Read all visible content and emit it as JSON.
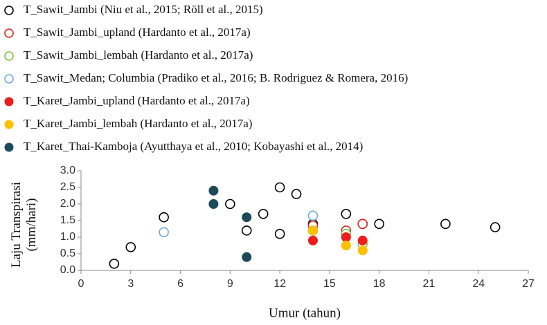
{
  "chart_data": {
    "type": "scatter",
    "x_label": "Umur (tahun)",
    "y_label": "Laju Transpirasi (mm/hari)",
    "xlim": [
      0,
      27
    ],
    "xticks": [
      0,
      3,
      6,
      9,
      12,
      15,
      18,
      21,
      24,
      27
    ],
    "ylim": [
      0,
      3
    ],
    "yticks": [
      {
        "value": 0,
        "label": "0.0"
      },
      {
        "value": 0.5,
        "label": "0.5"
      },
      {
        "value": 1,
        "label": "1.0"
      },
      {
        "value": 1.5,
        "label": "1.5"
      },
      {
        "value": 2,
        "label": "2.0"
      },
      {
        "value": 2.5,
        "label": "2.5"
      },
      {
        "value": 3,
        "label": "3.0"
      }
    ],
    "grid": false,
    "series": [
      {
        "name": "T_Sawit_Jambi (Niu et al., 2015; Röll et al., 2015)",
        "color": "#000000",
        "filled": false,
        "x": [
          2,
          3,
          5,
          9,
          10,
          11,
          12,
          12,
          13,
          14,
          16,
          17,
          18,
          22,
          25
        ],
        "values": [
          0.2,
          0.7,
          1.6,
          2.0,
          1.2,
          1.7,
          2.5,
          1.1,
          2.3,
          1.4,
          1.7,
          1.4,
          1.4,
          1.4,
          1.3
        ]
      },
      {
        "name": "T_Sawit_Jambi_upland (Hardanto et al., 2017a)",
        "color": "#e02020",
        "filled": false,
        "x": [
          14,
          16,
          17
        ],
        "values": [
          1.35,
          1.2,
          1.4
        ]
      },
      {
        "name": "T_Sawit_Jambi_lembah (Hardanto et al., 2017a)",
        "color": "#7ac143",
        "filled": false,
        "x": [
          14,
          16,
          17
        ],
        "values": [
          1.2,
          1.1,
          0.8
        ]
      },
      {
        "name": "T_Sawit_Medan; Columbia (Pradiko et al., 2016; B. Rodriguez & Romera, 2016)",
        "color": "#6fa8dc",
        "filled": false,
        "x": [
          5,
          14
        ],
        "values": [
          1.15,
          1.65
        ]
      },
      {
        "name": "T_Karet_Jambi_upland (Hardanto et al., 2017a)",
        "color": "#ee1c1c",
        "filled": true,
        "x": [
          14,
          16,
          17
        ],
        "values": [
          0.9,
          1.0,
          0.9
        ]
      },
      {
        "name": "T_Karet_Jambi_lembah (Hardanto et al., 2017a)",
        "color": "#ffc000",
        "filled": true,
        "x": [
          14,
          16,
          17
        ],
        "values": [
          1.2,
          0.75,
          0.6
        ]
      },
      {
        "name": "T_Karet_Thai-Kamboja (Ayutthaya et al., 2010; Kobayashi et al., 2014)",
        "color": "#1c4a5a",
        "filled": true,
        "x": [
          8,
          8,
          10,
          10
        ],
        "values": [
          2.4,
          2.0,
          1.6,
          0.4
        ]
      }
    ]
  }
}
